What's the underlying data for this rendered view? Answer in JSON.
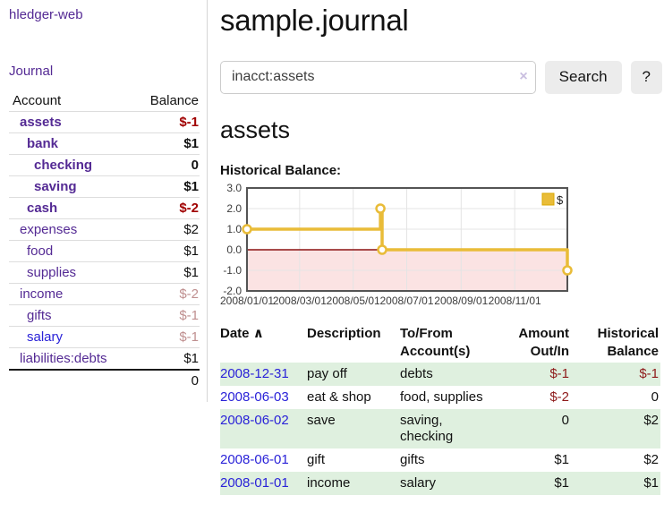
{
  "app": {
    "brand": "hledger-web"
  },
  "sidebar": {
    "journal_link": "Journal",
    "header": {
      "account": "Account",
      "balance": "Balance"
    },
    "accounts": [
      {
        "name": "assets",
        "balance": "$-1"
      },
      {
        "name": "bank",
        "balance": "$1"
      },
      {
        "name": "checking",
        "balance": "0"
      },
      {
        "name": "saving",
        "balance": "$1"
      },
      {
        "name": "cash",
        "balance": "$-2"
      },
      {
        "name": "expenses",
        "balance": "$2"
      },
      {
        "name": "food",
        "balance": "$1"
      },
      {
        "name": "supplies",
        "balance": "$1"
      },
      {
        "name": "income",
        "balance": "$-2"
      },
      {
        "name": "gifts",
        "balance": "$-1"
      },
      {
        "name": "salary",
        "balance": "$-1"
      },
      {
        "name": "liabilities:debts",
        "balance": "$1"
      }
    ],
    "total": "0"
  },
  "main": {
    "title": "sample.journal",
    "search": {
      "value": "inacct:assets",
      "clear_icon": "×",
      "search_button": "Search",
      "help_button": "?"
    },
    "account_heading": "assets"
  },
  "chart_data": {
    "type": "line",
    "step": true,
    "title": "Historical Balance:",
    "x_range": [
      "2008/01/01",
      "2008/12/31"
    ],
    "ylim": [
      -2,
      3
    ],
    "y_ticks": [
      3,
      2,
      1,
      0,
      -1,
      -2
    ],
    "x_ticks": [
      "2008/01/01",
      "2008/03/01",
      "2008/05/01",
      "2008/07/01",
      "2008/09/01",
      "2008/11/01"
    ],
    "series": [
      {
        "name": "$",
        "color": "#e9bc38",
        "points": [
          {
            "date": "2008/01/01",
            "value": 1
          },
          {
            "date": "2008/06/01",
            "value": 2
          },
          {
            "date": "2008/06/03",
            "value": 0
          },
          {
            "date": "2008/12/31",
            "value": -1
          }
        ]
      }
    ],
    "legend": {
      "label": "$",
      "position": "top-right"
    },
    "grid": true,
    "grid_color": "#e4e4e4",
    "border_color": "#545454",
    "zero_line_color": "#8b1212",
    "negative_fill": "#fbe3e3",
    "tick_color": "#3c3c3c",
    "legend_box_border": "#d9a700"
  },
  "register": {
    "headers": {
      "date": "Date",
      "sort_icon": "∧",
      "description": "Description",
      "tofrom_line1": "To/From",
      "tofrom_line2": "Account(s)",
      "amount_line1": "Amount",
      "amount_line2": "Out/In",
      "balance_line1": "Historical",
      "balance_line2": "Balance"
    },
    "rows": [
      {
        "date": "2008-12-31",
        "description": "pay off",
        "accounts": "debts",
        "amount": "$-1",
        "balance": "$-1"
      },
      {
        "date": "2008-06-03",
        "description": "eat & shop",
        "accounts": "food, supplies",
        "amount": "$-2",
        "balance": "0"
      },
      {
        "date": "2008-06-02",
        "description": "save",
        "accounts": "saving, checking",
        "amount": "0",
        "balance": "$2"
      },
      {
        "date": "2008-06-01",
        "description": "gift",
        "accounts": "gifts",
        "amount": "$1",
        "balance": "$2"
      },
      {
        "date": "2008-01-01",
        "description": "income",
        "accounts": "salary",
        "amount": "$1",
        "balance": "$1"
      }
    ]
  }
}
